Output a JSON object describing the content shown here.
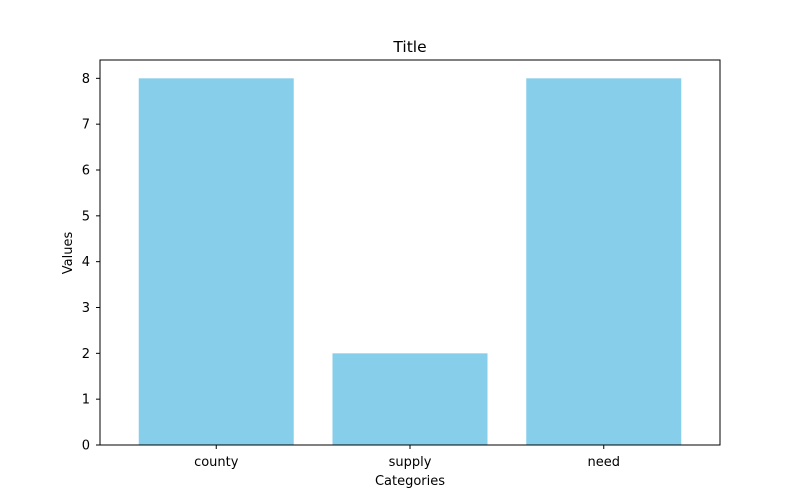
{
  "chart_data": {
    "type": "bar",
    "title": "Title",
    "xlabel": "Categories",
    "ylabel": "Values",
    "categories": [
      "county",
      "supply",
      "need"
    ],
    "values": [
      8,
      2,
      8
    ],
    "ylim": [
      0,
      8.4
    ],
    "yticks": [
      0,
      1,
      2,
      3,
      4,
      5,
      6,
      7,
      8
    ],
    "bar_color": "#87ceeb",
    "grid": false,
    "legend": "none"
  }
}
